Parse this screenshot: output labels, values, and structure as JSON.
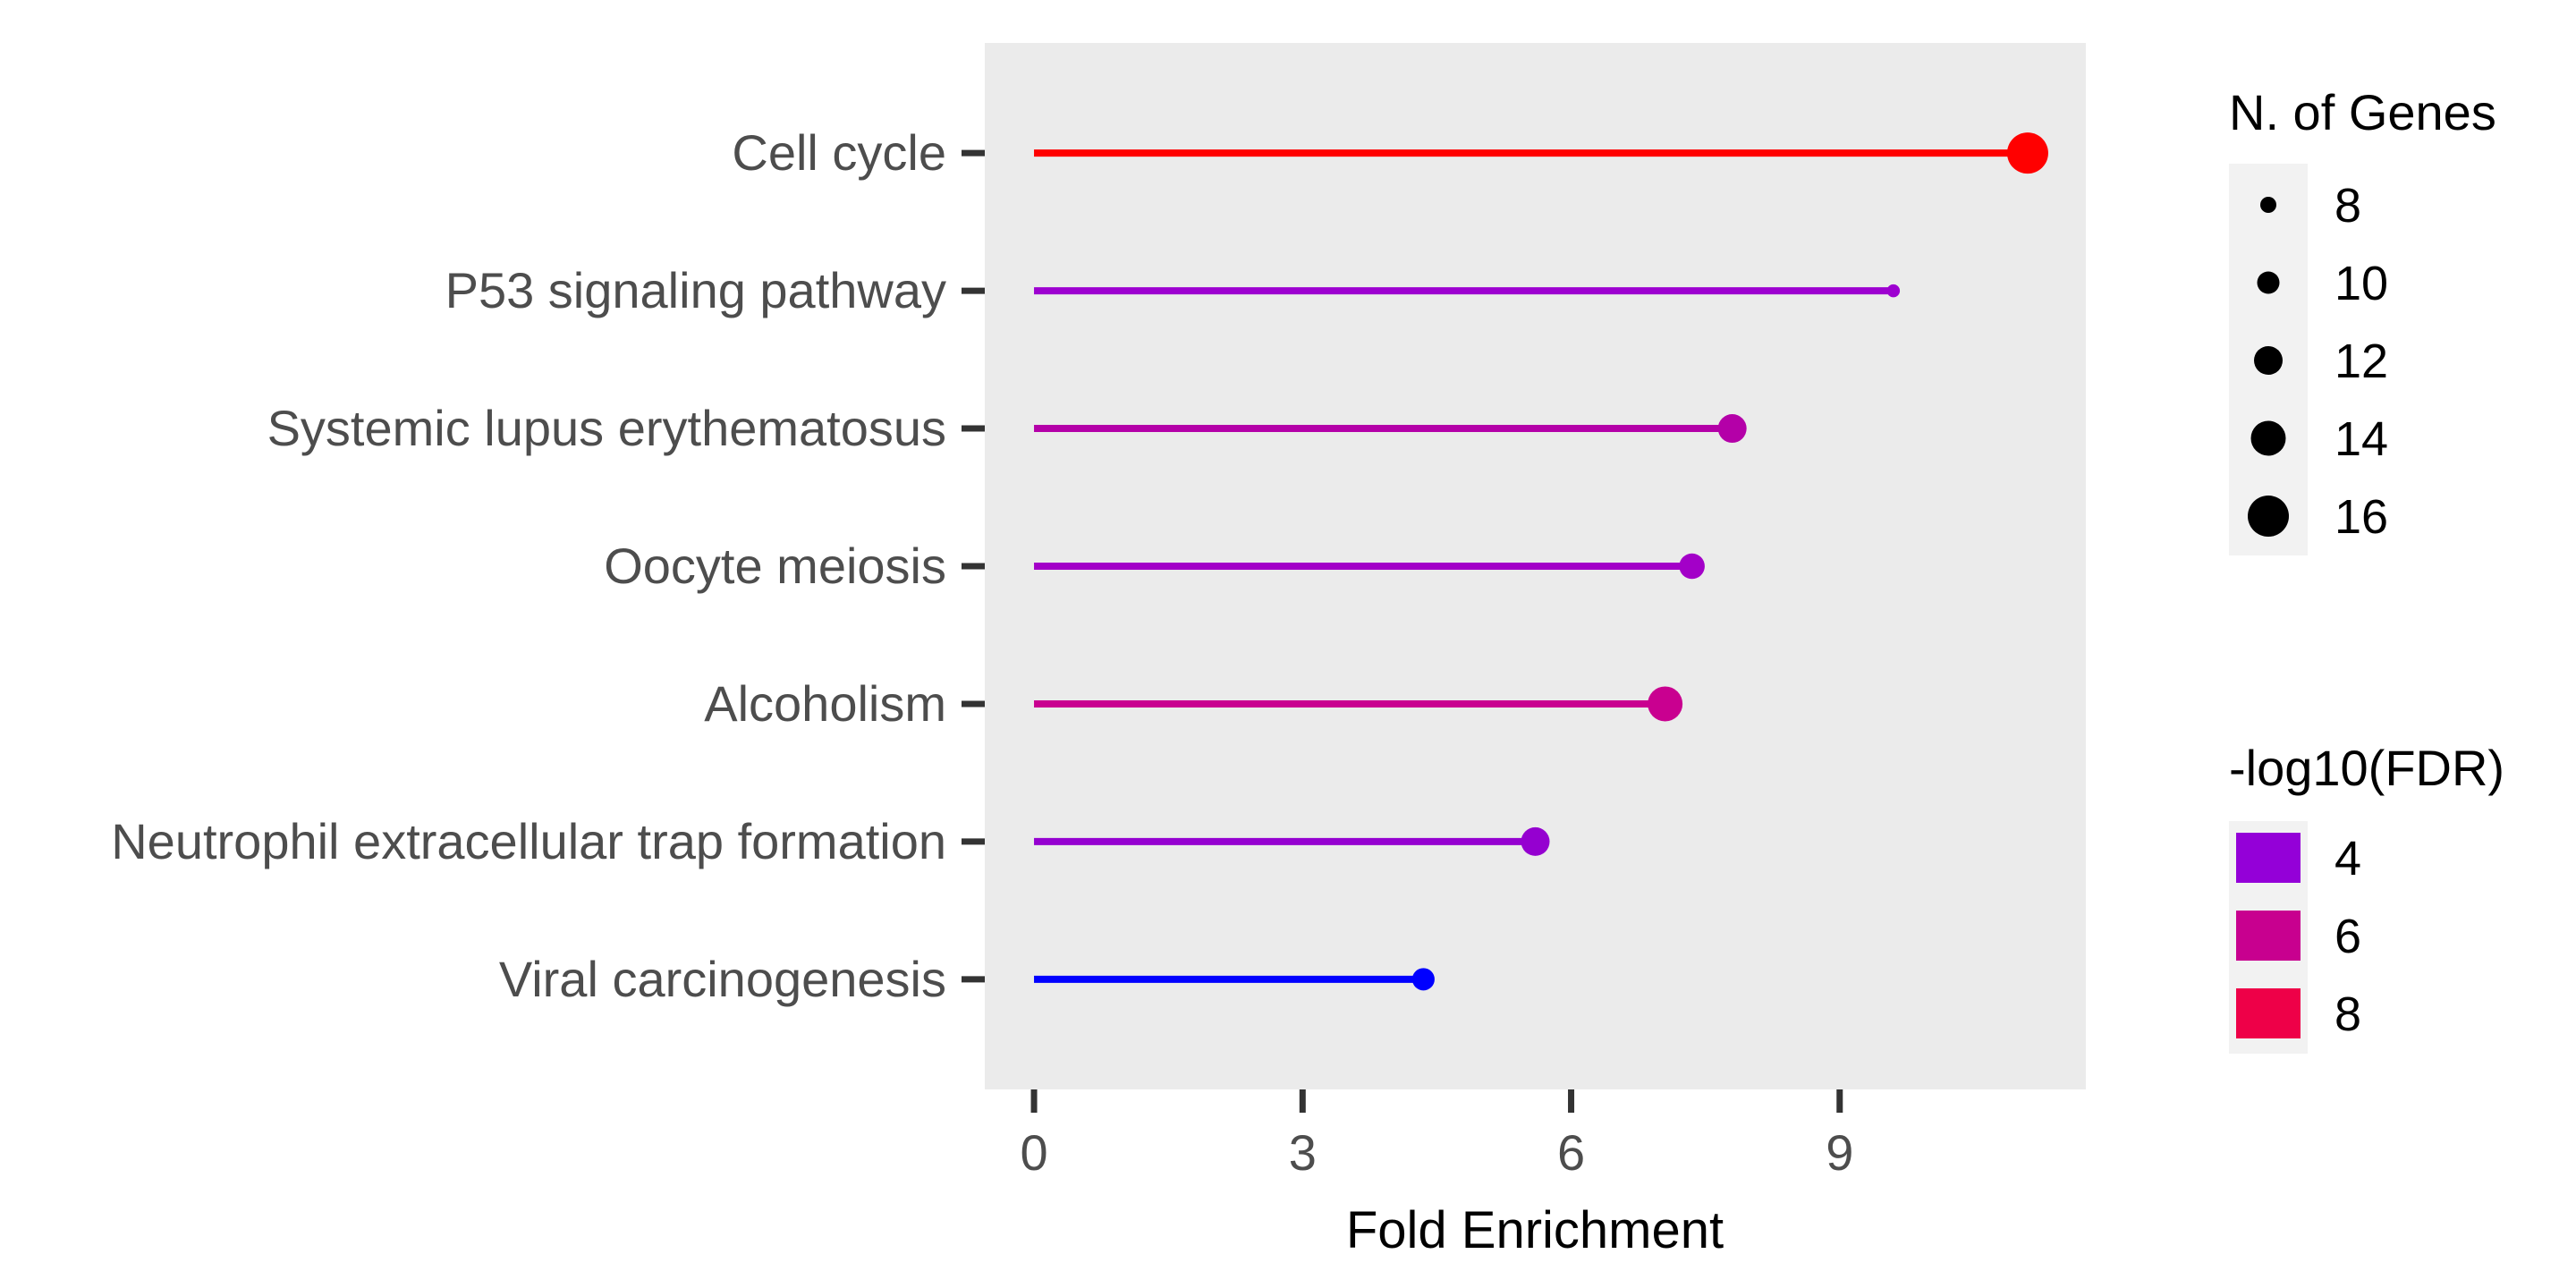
{
  "chart_data": {
    "type": "lollipop",
    "title": "",
    "xlabel": "Fold Enrichment",
    "ylabel": "",
    "xlim": [
      -0.55,
      11.75
    ],
    "x_ticks": [
      0,
      3,
      6,
      9
    ],
    "x_tick_labels": [
      "0",
      "3",
      "6",
      "9"
    ],
    "grid": false,
    "panel_background": "#ebebeb",
    "categories": [
      "Cell cycle",
      "P53 signaling pathway",
      "Systemic lupus erythematosus",
      "Oocyte meiosis",
      "Alcoholism",
      "Neutrophil extracellular trap formation",
      "Viral carcinogenesis"
    ],
    "fold_enrichment": [
      11.1,
      9.6,
      7.8,
      7.35,
      7.05,
      5.6,
      4.35
    ],
    "n_genes": [
      16,
      7,
      12,
      11,
      14,
      12,
      10
    ],
    "neg_log10_fdr": [
      8.6,
      4.3,
      5.3,
      4.6,
      6.0,
      4.4,
      2.9
    ],
    "colors": [
      "#ff0000",
      "#9d00d0",
      "#b400a8",
      "#a300c8",
      "#c90090",
      "#9500d0",
      "#0000ff"
    ],
    "legend_size": {
      "title": "N. of Genes",
      "position": "right",
      "labels": [
        "8",
        "10",
        "12",
        "14",
        "16"
      ],
      "values": [
        8,
        10,
        12,
        14,
        16
      ]
    },
    "legend_color": {
      "title": "-log10(FDR)",
      "position": "right",
      "labels": [
        "4",
        "6",
        "8"
      ],
      "values": [
        4,
        6,
        8
      ],
      "colors": [
        "#9400d8",
        "#c8008f",
        "#ee0048"
      ]
    }
  }
}
